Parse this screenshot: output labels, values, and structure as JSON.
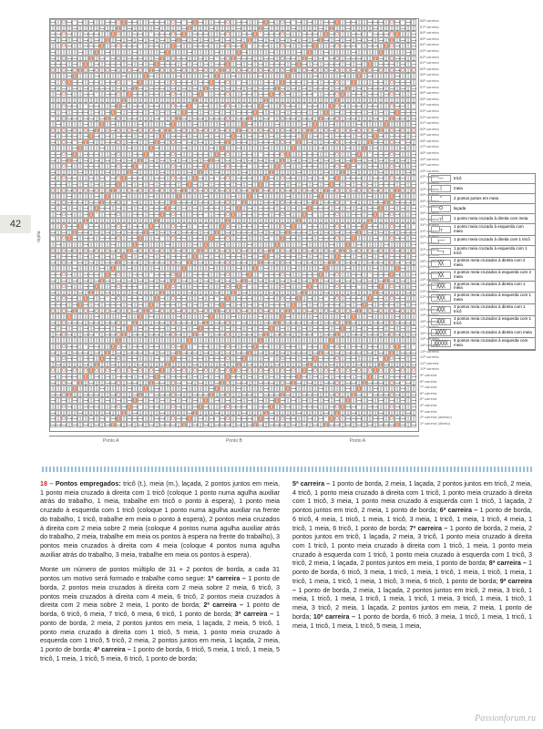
{
  "page_number": "42",
  "vert_label": "repita",
  "chart": {
    "rows": 68,
    "cols": 67,
    "point_sections": [
      "Ponto A",
      "Ponto B",
      "Ponto A"
    ]
  },
  "row_labels_suffix": "ª carreira",
  "row_label_last1": "2ª carreira (avesso)",
  "row_label_last2": "1ª carreira (direito)",
  "legend": [
    {
      "sym": "—",
      "txt": "tricô"
    },
    {
      "sym": "|",
      "txt": "meia"
    },
    {
      "sym": "⌃",
      "txt": "2 pontos juntos em meia"
    },
    {
      "sym": "O",
      "txt": "laçada"
    },
    {
      "sym": "┬|",
      "txt": "1 ponto meia cruzado à direita com meia"
    },
    {
      "sym": "|┬",
      "txt": "1 ponto meia cruzado à esquerda com meia"
    },
    {
      "sym": "┬—",
      "txt": "1 ponto meia cruzado à direita com 1 tricô"
    },
    {
      "sym": "—┬",
      "txt": "1 ponto meia cruzado à esquerda com 1 tricô"
    },
    {
      "sym": "╳╳",
      "txt": "2 pontos meia cruzados à direita com 2 meia"
    },
    {
      "sym": "╳╳",
      "txt": "2 pontos meia cruzados à esquerda com 2 meia"
    },
    {
      "sym": "╳╳╳",
      "txt": "3 pontos meia cruzados à direita com 1 meia"
    },
    {
      "sym": "╳╳╳",
      "txt": "3 pontos meia cruzados à esquerda com 1 meia"
    },
    {
      "sym": "╳╳╳",
      "txt": "3 pontos meia cruzados à direita com 1 tricô"
    },
    {
      "sym": "╳╳╳",
      "txt": "3 pontos meia cruzados à esquerda com 1 tricô"
    },
    {
      "sym": "╳╳╳╳",
      "txt": "4 pontos meia cruzados à direita com meia"
    },
    {
      "sym": "╳╳╳╳╳",
      "txt": "5 pontos meia cruzados à esquerda com meia"
    }
  ],
  "text": {
    "intro_num": "18 – ",
    "intro_label": "Pontos empregados:",
    "intro_body": " tricô (t.), meia (m.), laçada, 2 pontos juntos em meia, 1 ponto meia cruzado à direita com 1 tricô (coloque 1 ponto numa agulha auxiliar atrás do trabalho, 1 meia, trabalhe em tricô o ponto à espera), 1 ponto meia cruzado à esquerda com 1 tricô (coloque 1 ponto numa agulha auxiliar na frente do trabalho, 1 tricô, trabalhe em meia o ponto à espera), 2 pontos meia cruzados à direita com 2 meia sobre 2 meia (coloque 4 pontos numa agulha auxiliar atrás do trabalho, 2 meia, trabalhe em meia os pontos à espera na frente do trabalho), 3 pontos meia cruzados à direita com 4 meia (coloque 4 pontos numa agulha auxiliar atrás do trabalho, 3 meia, trabalhe em meia os pontos à espera).",
    "para2_start": "Monte um número de pontos múltiplo de 31 + 2 pontos de borda, a cada 31 pontos um motivo será formado e trabalhe como segue: ",
    "c1_label": "1ª carreira –",
    "c1_body": " 1 ponto de borda, 2 pontos meia cruzados à direita com 2 meia sobre 2 meia, 6 tricô, 3 pontos meia cruzados à direita com 4 meia, 6 tricô, 2 pontos meia cruzados à direita com 2 meia sobre 2 meia, 1 ponto de borda; ",
    "c2_label": "2ª carreira –",
    "c2_body": " 1 ponto de borda, 6 tricô, 6 meia, 7 tricô, 6 meia, 6 tricô, 1 ponto de borda; ",
    "c3_label": "3ª carreira –",
    "c3_body": " 1 ponto de borda, 2 meia, 2 pontos juntos em meia, 1 laçada, 2 meia, 5 tricô, 1 ponto meia cruzado à direita com 1 tricô, 5 meia, 1 ponto meia cruzado à esquerda com 1 tricô, 5 tricô, 2 meia, 2 pontos juntos em meia, 1 laçada, 2 meia, 1 ponto de borda; ",
    "c4_label": "4ª carreira –",
    "c4_body": " 1 ponto de borda, 6 tricô, 5 meia, 1 tricô, 1 meia, 5 tricô, 1 meia, 1 tricô, 5 meia, 6 tricô, 1 ponto de borda; ",
    "c5_label": "5ª carreira –",
    "c5_body": " 1 ponto de borda, 2 meia, 1 laçada, 2 pontos juntos em tricô, 2 meia, 4 tricô, 1 ponto meia cruzado à direita com 1 tricô, 1 ponto meia cruzado à direita com 1 tricô, 3 meia, 1 ponto meia cruzado à esquerda com 1 tricô, 1 laçada, 2 pontos juntos em tricô, 2 meia, 1 ponto de borda; ",
    "c6_label": "6ª carreira –",
    "c6_body": " 1 ponto de borda, 6 tricô, 4 meia, 1 tricô, 1 meia, 1 tricô, 3 meia, 1 tricô, 1 meia, 1 tricô, 4 meia, 1 tricô, 1 meia, 6 tricô, 1 ponto de borda; ",
    "c7_label": "7ª carreira –",
    "c7_body": " 1 ponto de borda, 2 meia, 2 pontos juntos em tricô, 1 laçada, 2 meia, 3 tricô, 1 ponto meia cruzado à direita com 1 tricô, 1 ponto meia cruzado à direita com 1 tricô, 1 meia, 1 ponto meia cruzado à esquerda com 1 tricô, 1 ponto meia cruzado à esquerda com 1 tricô, 3 tricô, 2 meia, 1 laçada, 2 pontos juntos em meia, 1 ponto de borda; ",
    "c8_label": "8ª carreira –",
    "c8_body": " 1 ponto de borda, 6 tricô, 3 meia, 1 tricô, 1 meia, 1 tricô, 1 meia, 1 tricô, 1 meia, 1 tricô, 1 meia, 1 tricô, 1 meia, 1 tricô, 3 meia, 6 tricô, 1 ponto de borda; ",
    "c9_label": "9ª carreira –",
    "c9_body": " 1 ponto de borda, 2 meia, 1 laçada, 2 pontos juntos em tricô, 2 meia, 3 tricô, 1 meia, 1 tricô, 1 meia, 1 tricô, 1 meia, 1 tricô, 1 meia, 3 tricô, 1 meia, 1 tricô, 1 meia, 3 tricô, 2 meia, 1 laçada, 2 pontos juntos em meia, 2 meia, 1 ponto de borda; ",
    "c10_label": "10ª carreira –",
    "c10_body": " 1 ponto de borda, 6 tricô, 3 meia, 1 tricô, 1 meia, 1 tricô, 1 meia, 1 tricô, 1 meia, 1 tricô, 5 meia, 1 meia,"
  },
  "watermark": "Passionforum.ru"
}
